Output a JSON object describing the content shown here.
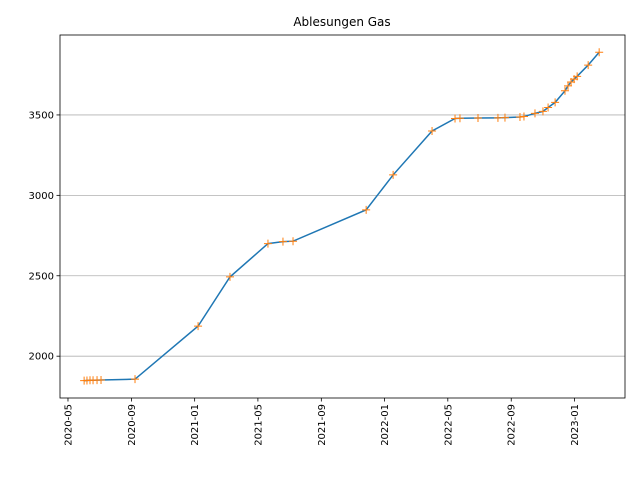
{
  "chart_data": {
    "type": "line",
    "title": "Ablesungen Gas",
    "x": [
      2020.418,
      2020.433,
      2020.449,
      2020.465,
      2020.486,
      2020.507,
      2020.686,
      2021.018,
      2021.186,
      2021.386,
      2021.465,
      2021.518,
      2021.903,
      2022.045,
      2022.25,
      2022.371,
      2022.397,
      2022.492,
      2022.597,
      2022.634,
      2022.713,
      2022.734,
      2022.792,
      2022.834,
      2022.861,
      2022.898,
      2022.95,
      2022.966,
      2022.982,
      2022.998,
      2023.014,
      2023.072,
      2023.13
    ],
    "values": [
      1848,
      1849,
      1850,
      1850,
      1851,
      1852,
      1857,
      2187,
      2493,
      2700,
      2712,
      2715,
      2910,
      3127,
      3400,
      3478,
      3479,
      3481,
      3482,
      3483,
      3487,
      3490,
      3510,
      3522,
      3546,
      3578,
      3650,
      3681,
      3705,
      3723,
      3740,
      3810,
      3890
    ],
    "color": "#1f77b4",
    "marker_color": "#ff7f0e",
    "xlim": [
      2020.291,
      2023.266
    ],
    "xticks": [
      {
        "value": 2020.333,
        "label": "2020-05"
      },
      {
        "value": 2020.667,
        "label": "2020-09"
      },
      {
        "value": 2021.0,
        "label": "2021-01"
      },
      {
        "value": 2021.333,
        "label": "2021-05"
      },
      {
        "value": 2021.667,
        "label": "2021-09"
      },
      {
        "value": 2022.0,
        "label": "2022-01"
      },
      {
        "value": 2022.333,
        "label": "2022-05"
      },
      {
        "value": 2022.667,
        "label": "2022-09"
      },
      {
        "value": 2023.0,
        "label": "2023-01"
      }
    ],
    "ylim": [
      1740,
      3997
    ],
    "yticks": [
      2000,
      2500,
      3000,
      3500
    ],
    "grid": "y"
  }
}
